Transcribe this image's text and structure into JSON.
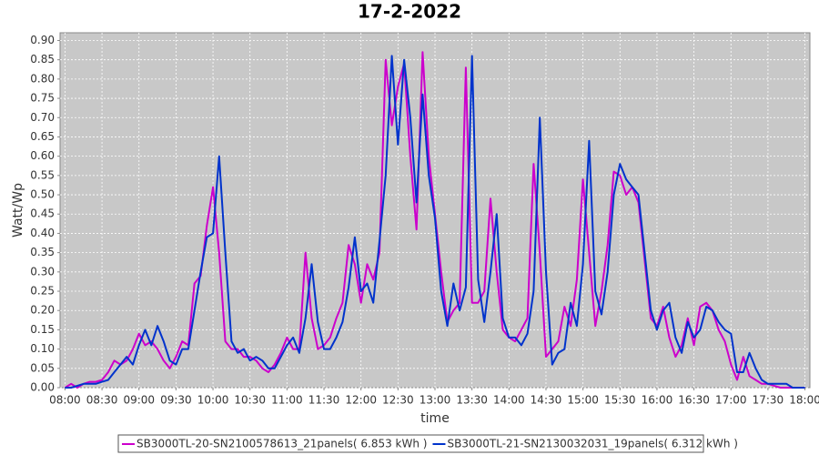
{
  "chart_data": {
    "type": "line",
    "title": "17-2-2022",
    "xlabel": "time",
    "ylabel": "Watt/Wp",
    "x": [
      "08:00",
      "08:05",
      "08:10",
      "08:15",
      "08:20",
      "08:25",
      "08:30",
      "08:35",
      "08:40",
      "08:45",
      "08:50",
      "08:55",
      "09:00",
      "09:05",
      "09:10",
      "09:15",
      "09:20",
      "09:25",
      "09:30",
      "09:35",
      "09:40",
      "09:45",
      "09:50",
      "09:55",
      "10:00",
      "10:05",
      "10:10",
      "10:15",
      "10:20",
      "10:25",
      "10:30",
      "10:35",
      "10:40",
      "10:45",
      "10:50",
      "10:55",
      "11:00",
      "11:05",
      "11:10",
      "11:15",
      "11:20",
      "11:25",
      "11:30",
      "11:35",
      "11:40",
      "11:45",
      "11:50",
      "11:55",
      "12:00",
      "12:05",
      "12:10",
      "12:15",
      "12:20",
      "12:25",
      "12:30",
      "12:35",
      "12:40",
      "12:45",
      "12:50",
      "12:55",
      "13:00",
      "13:05",
      "13:10",
      "13:15",
      "13:20",
      "13:25",
      "13:30",
      "13:35",
      "13:40",
      "13:45",
      "13:50",
      "13:55",
      "14:00",
      "14:05",
      "14:10",
      "14:15",
      "14:20",
      "14:25",
      "14:30",
      "14:35",
      "14:40",
      "14:45",
      "14:50",
      "14:55",
      "15:00",
      "15:05",
      "15:10",
      "15:15",
      "15:20",
      "15:25",
      "15:30",
      "15:35",
      "15:40",
      "15:45",
      "15:50",
      "15:55",
      "16:00",
      "16:05",
      "16:10",
      "16:15",
      "16:20",
      "16:25",
      "16:30",
      "16:35",
      "16:40",
      "16:45",
      "16:50",
      "16:55",
      "17:00",
      "17:05",
      "17:10",
      "17:15",
      "17:20",
      "17:25",
      "17:30",
      "17:35",
      "17:40",
      "17:45",
      "17:50",
      "17:55",
      "18:00"
    ],
    "series": [
      {
        "name": "SB3000TL-20-SN2100578613_21panels( 6.853 kWh )",
        "color": "#cc00cc",
        "values": [
          0,
          0.01,
          0,
          0.01,
          0.015,
          0.015,
          0.02,
          0.04,
          0.07,
          0.06,
          0.07,
          0.1,
          0.14,
          0.11,
          0.12,
          0.1,
          0.07,
          0.05,
          0.08,
          0.12,
          0.11,
          0.27,
          0.29,
          0.42,
          0.52,
          0.35,
          0.12,
          0.1,
          0.1,
          0.08,
          0.08,
          0.07,
          0.05,
          0.04,
          0.06,
          0.09,
          0.13,
          0.1,
          0.1,
          0.35,
          0.18,
          0.1,
          0.11,
          0.13,
          0.18,
          0.22,
          0.37,
          0.32,
          0.22,
          0.32,
          0.28,
          0.35,
          0.85,
          0.68,
          0.78,
          0.84,
          0.6,
          0.41,
          0.87,
          0.6,
          0.45,
          0.3,
          0.17,
          0.2,
          0.22,
          0.83,
          0.22,
          0.22,
          0.25,
          0.49,
          0.3,
          0.15,
          0.13,
          0.12,
          0.15,
          0.18,
          0.58,
          0.35,
          0.08,
          0.1,
          0.12,
          0.21,
          0.16,
          0.28,
          0.54,
          0.35,
          0.16,
          0.25,
          0.37,
          0.56,
          0.55,
          0.5,
          0.52,
          0.48,
          0.33,
          0.18,
          0.16,
          0.21,
          0.13,
          0.08,
          0.11,
          0.18,
          0.11,
          0.21,
          0.22,
          0.2,
          0.15,
          0.12,
          0.06,
          0.02,
          0.08,
          0.03,
          0.02,
          0.01,
          0.01,
          0.005,
          0,
          0,
          0,
          0,
          0
        ]
      },
      {
        "name": "SB3000TL-21-SN2130032031_19panels( 6.312 kWh )",
        "color": "#0033cc",
        "values": [
          0,
          0,
          0.005,
          0.01,
          0.01,
          0.01,
          0.015,
          0.02,
          0.04,
          0.06,
          0.08,
          0.06,
          0.11,
          0.15,
          0.11,
          0.16,
          0.12,
          0.07,
          0.06,
          0.1,
          0.1,
          0.2,
          0.3,
          0.39,
          0.4,
          0.6,
          0.35,
          0.12,
          0.09,
          0.1,
          0.07,
          0.08,
          0.07,
          0.05,
          0.05,
          0.08,
          0.11,
          0.13,
          0.09,
          0.18,
          0.32,
          0.17,
          0.1,
          0.1,
          0.13,
          0.17,
          0.26,
          0.39,
          0.25,
          0.27,
          0.22,
          0.38,
          0.55,
          0.86,
          0.63,
          0.85,
          0.7,
          0.48,
          0.76,
          0.55,
          0.44,
          0.25,
          0.16,
          0.27,
          0.2,
          0.26,
          0.86,
          0.28,
          0.17,
          0.3,
          0.45,
          0.18,
          0.13,
          0.13,
          0.11,
          0.14,
          0.25,
          0.7,
          0.3,
          0.06,
          0.09,
          0.1,
          0.22,
          0.16,
          0.32,
          0.64,
          0.25,
          0.19,
          0.3,
          0.5,
          0.58,
          0.54,
          0.52,
          0.5,
          0.35,
          0.2,
          0.15,
          0.2,
          0.22,
          0.13,
          0.09,
          0.17,
          0.13,
          0.15,
          0.21,
          0.2,
          0.17,
          0.15,
          0.14,
          0.04,
          0.04,
          0.09,
          0.05,
          0.02,
          0.01,
          0.01,
          0.01,
          0.01,
          0,
          0,
          0
        ]
      }
    ],
    "xlim": [
      "07:56",
      "18:04"
    ],
    "xticks": [
      "08:00",
      "08:30",
      "09:00",
      "09:30",
      "10:00",
      "10:30",
      "11:00",
      "11:30",
      "12:00",
      "12:30",
      "13:00",
      "13:30",
      "14:00",
      "14:30",
      "15:00",
      "15:30",
      "16:00",
      "16:30",
      "17:00",
      "17:30",
      "18:00"
    ],
    "ylim": [
      0,
      0.92
    ],
    "yticks": [
      {
        "value": 0,
        "label": "0.00"
      },
      {
        "value": 0.05,
        "label": "0.05"
      },
      {
        "value": 0.1,
        "label": "0.10"
      },
      {
        "value": 0.15,
        "label": "0.15"
      },
      {
        "value": 0.2,
        "label": "0.20"
      },
      {
        "value": 0.25,
        "label": "0.25"
      },
      {
        "value": 0.3,
        "label": "0.30"
      },
      {
        "value": 0.35,
        "label": "0.35"
      },
      {
        "value": 0.4,
        "label": "0.40"
      },
      {
        "value": 0.45,
        "label": "0.45"
      },
      {
        "value": 0.5,
        "label": "0.50"
      },
      {
        "value": 0.55,
        "label": "0.55"
      },
      {
        "value": 0.6,
        "label": "0.60"
      },
      {
        "value": 0.65,
        "label": "0.65"
      },
      {
        "value": 0.7,
        "label": "0.70"
      },
      {
        "value": 0.75,
        "label": "0.75"
      },
      {
        "value": 0.8,
        "label": "0.80"
      },
      {
        "value": 0.85,
        "label": "0.85"
      },
      {
        "value": 0.9,
        "label": "0.90"
      }
    ],
    "grid": true,
    "legend": "bottom"
  }
}
